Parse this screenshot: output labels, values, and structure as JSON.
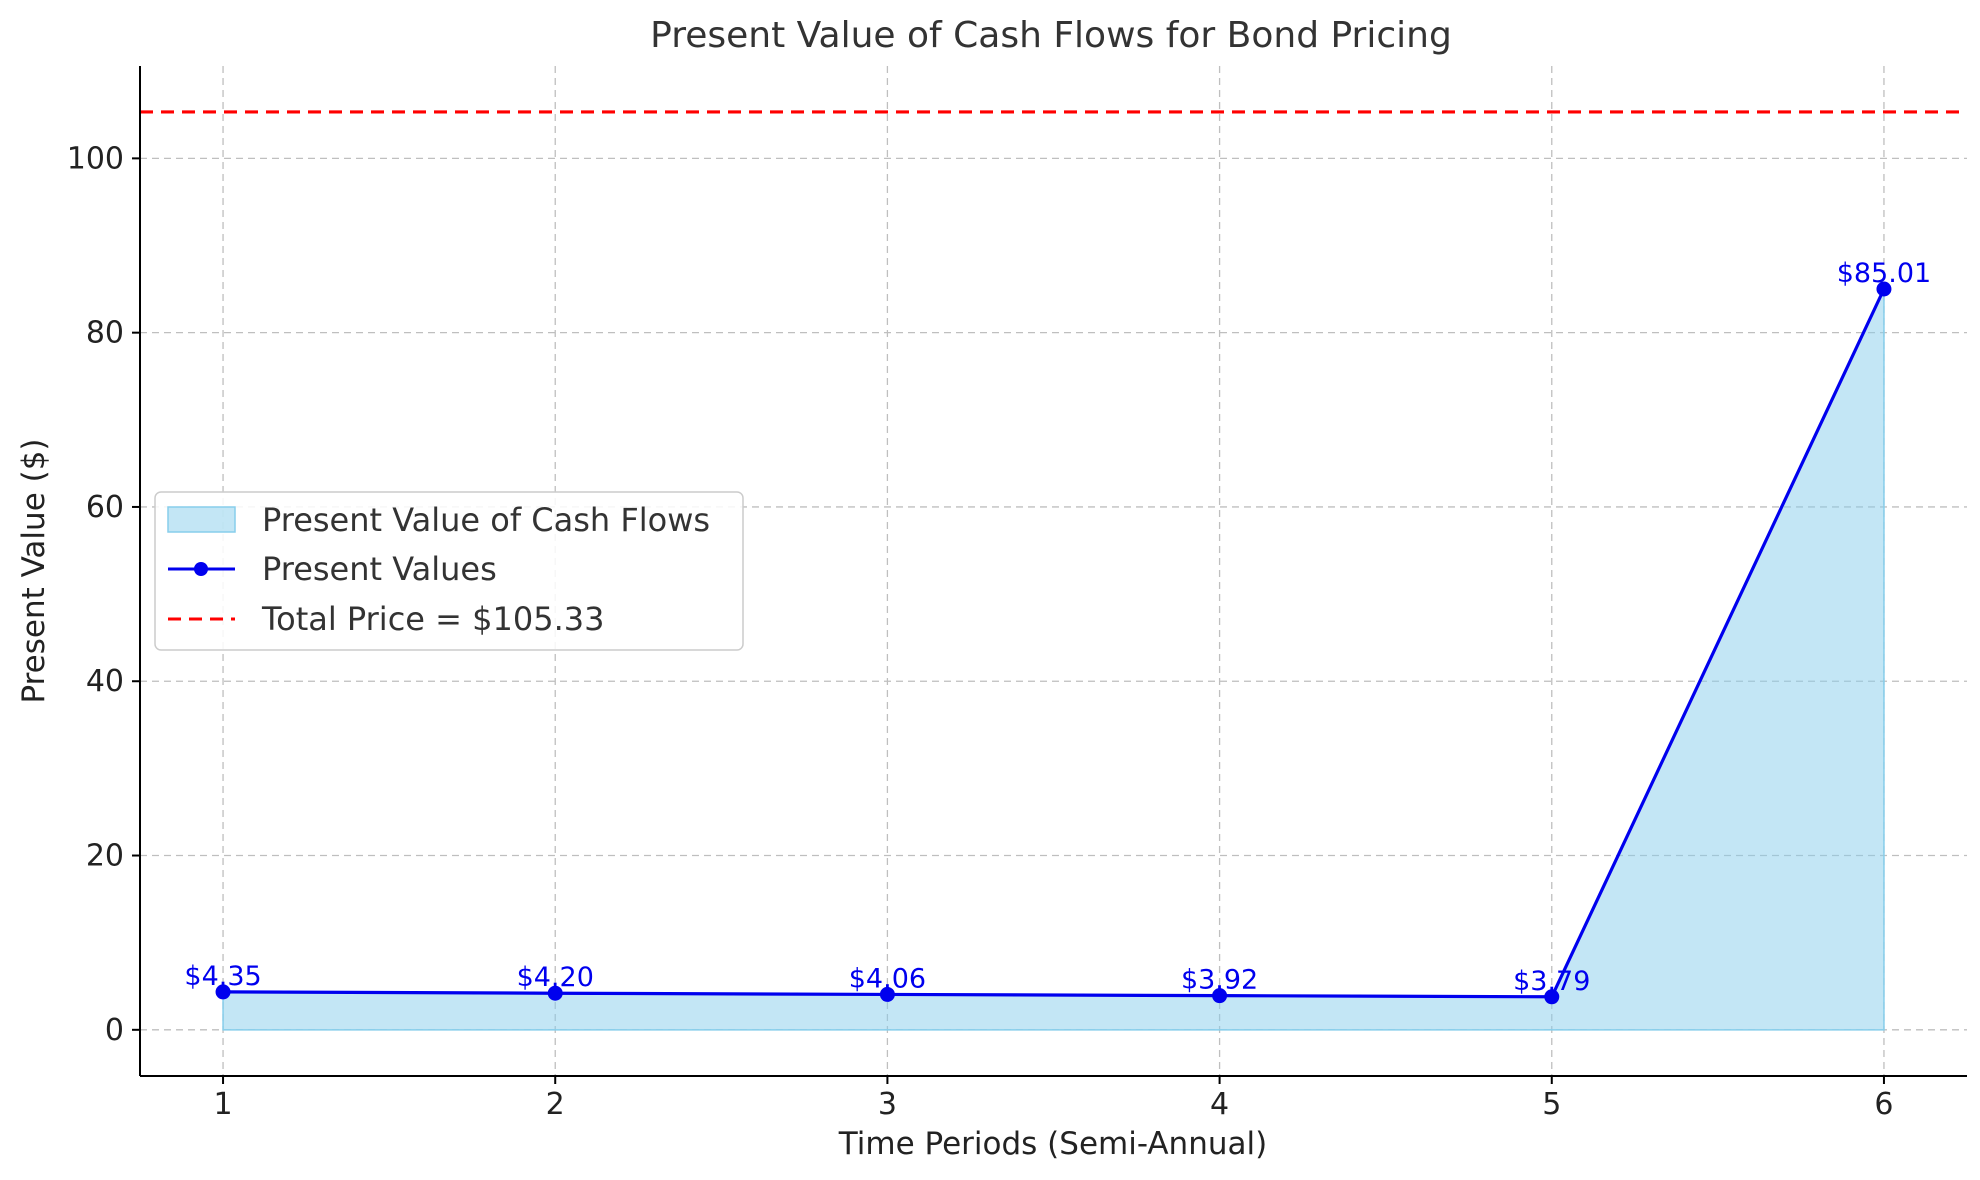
{
  "chart_data": {
    "type": "area",
    "title": "Present Value of Cash Flows for Bond Pricing",
    "xlabel": "Time Periods (Semi-Annual)",
    "ylabel": "Present Value ($)",
    "x": [
      1,
      2,
      3,
      4,
      5,
      6
    ],
    "values": [
      4.35,
      4.2,
      4.06,
      3.92,
      3.79,
      85.01
    ],
    "data_labels": [
      "$4.35",
      "$4.20",
      "$4.06",
      "$3.92",
      "$3.79",
      "$85.01"
    ],
    "xlim": [
      0.75,
      6.25
    ],
    "ylim": [
      -5.3,
      110.6
    ],
    "x_ticks": [
      1,
      2,
      3,
      4,
      5,
      6
    ],
    "y_ticks": [
      0,
      20,
      40,
      60,
      80,
      100
    ],
    "reference_line": {
      "value": 105.33,
      "label": "Total Price = $105.33",
      "color": "#ff0000",
      "style": "dashed"
    },
    "series": [
      {
        "name": "Present Value of Cash Flows",
        "kind": "area",
        "color": "#87ceeb"
      },
      {
        "name": "Present Values",
        "kind": "line-marker",
        "color": "#0000ee"
      }
    ],
    "legend": {
      "placement": "center-left",
      "entries": [
        "Present Value of Cash Flows",
        "Present Values",
        "Total Price = $105.33"
      ]
    },
    "grid": true
  }
}
